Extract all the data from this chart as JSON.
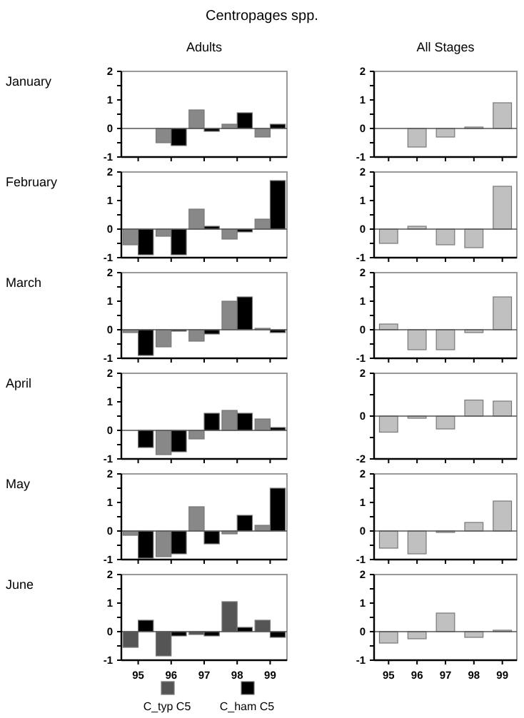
{
  "chart_data": [
    {
      "type": "bar",
      "title": "Centropages spp.",
      "subtitle": "Adults",
      "ylabel": "January",
      "categories": [
        "95",
        "96",
        "97",
        "98",
        "99"
      ],
      "tick_labels": "y",
      "ylim": [
        -1,
        2
      ],
      "yticks": [
        -1,
        {
          "value": -0.5,
          "label": null
        },
        0,
        {
          "value": 0.5,
          "label": null
        },
        1,
        {
          "value": 1.5,
          "label": null
        },
        2
      ],
      "series": [
        {
          "color": "#888888",
          "values": [
            null,
            -0.5,
            0.65,
            0.15,
            -0.3
          ]
        },
        {
          "color": "#000000",
          "values": [
            null,
            -0.6,
            -0.1,
            0.55,
            0.15
          ]
        }
      ]
    },
    {
      "type": "bar",
      "subtitle": "All Stages",
      "categories": [
        "95",
        "96",
        "97",
        "98",
        "99"
      ],
      "tick_labels": "y",
      "ylim": [
        -1,
        2
      ],
      "yticks": [
        -1,
        {
          "value": -0.5,
          "label": null
        },
        0,
        {
          "value": 0.5,
          "label": null
        },
        1,
        {
          "value": 1.5,
          "label": null
        },
        2
      ],
      "series": [
        {
          "color": "#c0c0c0",
          "values": [
            null,
            -0.65,
            -0.3,
            0.05,
            0.9
          ]
        }
      ]
    },
    {
      "type": "bar",
      "ylabel": "February",
      "categories": [
        "95",
        "96",
        "97",
        "98",
        "99"
      ],
      "tick_labels": "y",
      "ylim": [
        -1,
        2
      ],
      "yticks": [
        -1,
        {
          "value": -0.5,
          "label": null
        },
        0,
        {
          "value": 0.5,
          "label": null
        },
        1,
        {
          "value": 1.5,
          "label": null
        },
        2
      ],
      "series": [
        {
          "color": "#888888",
          "values": [
            -0.55,
            -0.25,
            0.7,
            -0.35,
            0.35
          ]
        },
        {
          "color": "#000000",
          "values": [
            -0.9,
            -0.9,
            0.1,
            -0.1,
            1.7
          ]
        }
      ]
    },
    {
      "type": "bar",
      "categories": [
        "95",
        "96",
        "97",
        "98",
        "99"
      ],
      "tick_labels": "y",
      "ylim": [
        -1,
        2
      ],
      "yticks": [
        -1,
        {
          "value": -0.5,
          "label": null
        },
        0,
        {
          "value": 0.5,
          "label": null
        },
        1,
        {
          "value": 1.5,
          "label": null
        },
        2
      ],
      "series": [
        {
          "color": "#c0c0c0",
          "values": [
            -0.5,
            0.1,
            -0.55,
            -0.65,
            1.5
          ]
        }
      ]
    },
    {
      "type": "bar",
      "ylabel": "March",
      "categories": [
        "95",
        "96",
        "97",
        "98",
        "99"
      ],
      "tick_labels": "y",
      "ylim": [
        -1,
        2
      ],
      "yticks": [
        -1,
        {
          "value": -0.5,
          "label": null
        },
        0,
        {
          "value": 0.5,
          "label": null
        },
        1,
        {
          "value": 1.5,
          "label": null
        },
        2
      ],
      "series": [
        {
          "color": "#888888",
          "values": [
            -0.1,
            -0.6,
            -0.4,
            1.0,
            0.05
          ]
        },
        {
          "color": "#000000",
          "values": [
            -0.9,
            -0.05,
            -0.15,
            1.15,
            -0.1
          ]
        }
      ]
    },
    {
      "type": "bar",
      "categories": [
        "95",
        "96",
        "97",
        "98",
        "99"
      ],
      "tick_labels": "y",
      "ylim": [
        -1,
        2
      ],
      "yticks": [
        -1,
        {
          "value": -0.5,
          "label": null
        },
        0,
        {
          "value": 0.5,
          "label": null
        },
        1,
        {
          "value": 1.5,
          "label": null
        },
        2
      ],
      "series": [
        {
          "color": "#c0c0c0",
          "values": [
            0.2,
            -0.7,
            -0.7,
            -0.1,
            1.15
          ]
        }
      ]
    },
    {
      "type": "bar",
      "ylabel": "April",
      "categories": [
        "95",
        "96",
        "97",
        "98",
        "99"
      ],
      "tick_labels": "y",
      "ylim": [
        -1,
        2
      ],
      "yticks": [
        -1,
        {
          "value": -0.5,
          "label": null
        },
        0,
        {
          "value": 0.5,
          "label": null
        },
        1,
        {
          "value": 1.5,
          "label": null
        },
        2
      ],
      "series": [
        {
          "color": "#888888",
          "values": [
            null,
            -0.85,
            -0.3,
            0.7,
            0.4
          ]
        },
        {
          "color": "#000000",
          "values": [
            -0.6,
            -0.75,
            0.6,
            0.6,
            0.1
          ]
        }
      ]
    },
    {
      "type": "bar",
      "categories": [
        "95",
        "96",
        "97",
        "98",
        "99"
      ],
      "tick_labels": "y",
      "ylim": [
        -2,
        2
      ],
      "yticks": [
        -2,
        {
          "value": -1,
          "label": null
        },
        0,
        {
          "value": 1,
          "label": null
        },
        2
      ],
      "series": [
        {
          "color": "#c0c0c0",
          "values": [
            -0.75,
            -0.1,
            -0.6,
            0.75,
            0.7
          ]
        }
      ]
    },
    {
      "type": "bar",
      "ylabel": "May",
      "categories": [
        "95",
        "96",
        "97",
        "98",
        "99"
      ],
      "tick_labels": "y",
      "ylim": [
        -1,
        2
      ],
      "yticks": [
        -1,
        {
          "value": -0.5,
          "label": null
        },
        0,
        {
          "value": 0.5,
          "label": null
        },
        1,
        {
          "value": 1.5,
          "label": null
        },
        2
      ],
      "series": [
        {
          "color": "#888888",
          "values": [
            -0.15,
            -0.9,
            0.85,
            -0.1,
            0.2
          ]
        },
        {
          "color": "#000000",
          "values": [
            -0.95,
            -0.8,
            -0.45,
            0.55,
            1.5
          ]
        }
      ]
    },
    {
      "type": "bar",
      "categories": [
        "95",
        "96",
        "97",
        "98",
        "99"
      ],
      "tick_labels": "y",
      "ylim": [
        -1,
        2
      ],
      "yticks": [
        -1,
        {
          "value": -0.5,
          "label": null
        },
        0,
        {
          "value": 0.5,
          "label": null
        },
        1,
        {
          "value": 1.5,
          "label": null
        },
        2
      ],
      "series": [
        {
          "color": "#c0c0c0",
          "values": [
            -0.6,
            -0.8,
            -0.05,
            0.3,
            1.05
          ]
        }
      ]
    },
    {
      "type": "bar",
      "ylabel": "June",
      "categories": [
        "95",
        "96",
        "97",
        "98",
        "99"
      ],
      "legend": "bottom",
      "ylim": [
        -1,
        2
      ],
      "yticks": [
        -1,
        {
          "value": -0.5,
          "label": null
        },
        0,
        {
          "value": 0.5,
          "label": null
        },
        1,
        {
          "value": 1.5,
          "label": null
        },
        2
      ],
      "series": [
        {
          "name": "C_typ C5",
          "color": "#555555",
          "values": [
            -0.55,
            -0.85,
            -0.1,
            1.05,
            0.4
          ]
        },
        {
          "name": "C_ham C5",
          "color": "#000000",
          "values": [
            0.4,
            -0.15,
            -0.15,
            0.15,
            -0.2
          ]
        }
      ]
    },
    {
      "type": "bar",
      "categories": [
        "95",
        "96",
        "97",
        "98",
        "99"
      ],
      "ylim": [
        -1,
        2
      ],
      "yticks": [
        -1,
        {
          "value": -0.5,
          "label": null
        },
        0,
        {
          "value": 0.5,
          "label": null
        },
        1,
        {
          "value": 1.5,
          "label": null
        },
        2
      ],
      "series": [
        {
          "color": "#c0c0c0",
          "values": [
            -0.4,
            -0.25,
            0.65,
            -0.2,
            0.05
          ]
        }
      ]
    }
  ]
}
